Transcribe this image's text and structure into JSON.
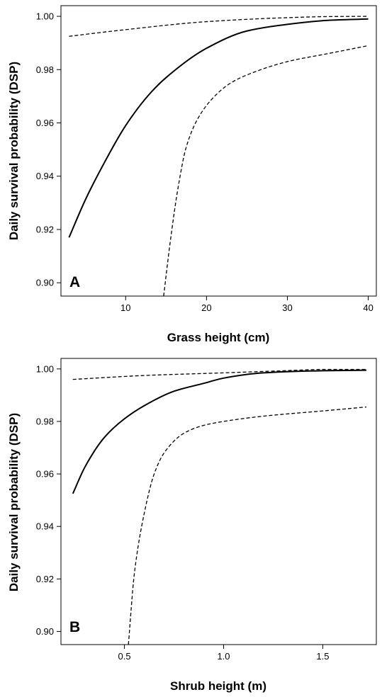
{
  "chart_data": [
    {
      "type": "line",
      "panel_label": "A",
      "xlabel": "Grass height (cm)",
      "ylabel": "Daily survival probability (DSP)",
      "xlim": [
        2,
        41
      ],
      "ylim": [
        0.895,
        1.004
      ],
      "xticks": [
        10,
        20,
        30,
        40
      ],
      "xtick_labels": [
        "10",
        "20",
        "30",
        "40"
      ],
      "yticks": [
        0.9,
        0.92,
        0.94,
        0.96,
        0.98,
        1.0
      ],
      "ytick_labels": [
        "0.90",
        "0.92",
        "0.94",
        "0.96",
        "0.98",
        "1.00"
      ],
      "grid": false,
      "legend": "none",
      "series": [
        {
          "role": "estimate",
          "style": "solid",
          "x": [
            3,
            5,
            7,
            10,
            13,
            15,
            20,
            25,
            30,
            35,
            40
          ],
          "y": [
            0.917,
            0.931,
            0.943,
            0.959,
            0.971,
            0.977,
            0.988,
            0.9945,
            0.997,
            0.9985,
            0.999
          ]
        },
        {
          "role": "upper",
          "style": "dashed",
          "x": [
            3,
            10,
            20,
            30,
            35,
            40
          ],
          "y": [
            0.9925,
            0.995,
            0.998,
            0.9995,
            0.9999,
            1.0
          ]
        },
        {
          "role": "lower",
          "style": "dashed",
          "x": [
            14.7,
            15.5,
            16.5,
            17.5,
            19,
            21,
            23,
            25,
            30,
            35,
            40
          ],
          "y": [
            0.895,
            0.915,
            0.936,
            0.951,
            0.962,
            0.97,
            0.975,
            0.978,
            0.983,
            0.986,
            0.989
          ]
        }
      ]
    },
    {
      "type": "line",
      "panel_label": "B",
      "xlabel": "Shrub height (m)",
      "ylabel": "Daily survival probability (DSP)",
      "xlim": [
        0.18,
        1.77
      ],
      "ylim": [
        0.895,
        1.004
      ],
      "xticks": [
        0.5,
        1.0,
        1.5
      ],
      "xtick_labels": [
        "0.5",
        "1.0",
        "1.5"
      ],
      "yticks": [
        0.9,
        0.92,
        0.94,
        0.96,
        0.98,
        1.0
      ],
      "ytick_labels": [
        "0.90",
        "0.92",
        "0.94",
        "0.96",
        "0.98",
        "1.00"
      ],
      "grid": false,
      "legend": "none",
      "series": [
        {
          "role": "estimate",
          "style": "solid",
          "x": [
            0.24,
            0.3,
            0.4,
            0.5,
            0.6,
            0.75,
            0.9,
            1.0,
            1.2,
            1.5,
            1.72
          ],
          "y": [
            0.9525,
            0.9625,
            0.974,
            0.981,
            0.986,
            0.9915,
            0.9945,
            0.9965,
            0.9985,
            0.9993,
            0.9995
          ]
        },
        {
          "role": "upper",
          "style": "dashed",
          "x": [
            0.24,
            0.6,
            1.0,
            1.3,
            1.5,
            1.72
          ],
          "y": [
            0.996,
            0.9975,
            0.9985,
            0.9993,
            0.9998,
            0.9998
          ]
        },
        {
          "role": "lower",
          "style": "dashed",
          "x": [
            0.52,
            0.55,
            0.6,
            0.65,
            0.7,
            0.8,
            0.9,
            1.0,
            1.2,
            1.5,
            1.72
          ],
          "y": [
            0.895,
            0.922,
            0.945,
            0.96,
            0.968,
            0.9755,
            0.9785,
            0.98,
            0.982,
            0.984,
            0.9855
          ]
        }
      ]
    }
  ]
}
